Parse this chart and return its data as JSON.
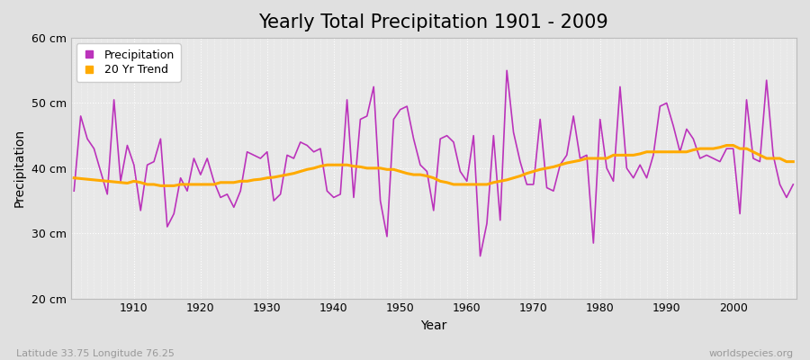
{
  "title": "Yearly Total Precipitation 1901 - 2009",
  "xlabel": "Year",
  "ylabel": "Precipitation",
  "latitude": "33.75",
  "longitude": "76.25",
  "source": "worldspecies.org",
  "years": [
    1901,
    1902,
    1903,
    1904,
    1905,
    1906,
    1907,
    1908,
    1909,
    1910,
    1911,
    1912,
    1913,
    1914,
    1915,
    1916,
    1917,
    1918,
    1919,
    1920,
    1921,
    1922,
    1923,
    1924,
    1925,
    1926,
    1927,
    1928,
    1929,
    1930,
    1931,
    1932,
    1933,
    1934,
    1935,
    1936,
    1937,
    1938,
    1939,
    1940,
    1941,
    1942,
    1943,
    1944,
    1945,
    1946,
    1947,
    1948,
    1949,
    1950,
    1951,
    1952,
    1953,
    1954,
    1955,
    1956,
    1957,
    1958,
    1959,
    1960,
    1961,
    1962,
    1963,
    1964,
    1965,
    1966,
    1967,
    1968,
    1969,
    1970,
    1971,
    1972,
    1973,
    1974,
    1975,
    1976,
    1977,
    1978,
    1979,
    1980,
    1981,
    1982,
    1983,
    1984,
    1985,
    1986,
    1987,
    1988,
    1989,
    1990,
    1991,
    1992,
    1993,
    1994,
    1995,
    1996,
    1997,
    1998,
    1999,
    2000,
    2001,
    2002,
    2003,
    2004,
    2005,
    2006,
    2007,
    2008,
    2009
  ],
  "precipitation": [
    36.5,
    48.0,
    44.5,
    43.0,
    39.5,
    36.0,
    50.5,
    38.0,
    43.5,
    40.5,
    33.5,
    40.5,
    41.0,
    44.5,
    31.0,
    33.0,
    38.5,
    36.5,
    41.5,
    39.0,
    41.5,
    38.0,
    35.5,
    36.0,
    34.0,
    36.5,
    42.5,
    42.0,
    41.5,
    42.5,
    35.0,
    36.0,
    42.0,
    41.5,
    44.0,
    43.5,
    42.5,
    43.0,
    36.5,
    35.5,
    36.0,
    50.5,
    35.5,
    47.5,
    48.0,
    52.5,
    35.0,
    29.5,
    47.5,
    49.0,
    49.5,
    44.5,
    40.5,
    39.5,
    33.5,
    44.5,
    45.0,
    44.0,
    39.5,
    38.0,
    45.0,
    26.5,
    31.5,
    45.0,
    32.0,
    55.0,
    45.5,
    41.0,
    37.5,
    37.5,
    47.5,
    37.0,
    36.5,
    40.5,
    42.0,
    48.0,
    41.5,
    42.0,
    28.5,
    47.5,
    40.0,
    38.0,
    52.5,
    40.0,
    38.5,
    40.5,
    38.5,
    42.0,
    49.5,
    50.0,
    46.5,
    42.5,
    46.0,
    44.5,
    41.5,
    42.0,
    41.5,
    41.0,
    43.0,
    43.0,
    33.0,
    50.5,
    41.5,
    41.0,
    53.5,
    42.0,
    37.5,
    35.5,
    37.5
  ],
  "trend": [
    38.5,
    38.4,
    38.3,
    38.2,
    38.1,
    38.0,
    37.9,
    37.8,
    37.7,
    38.0,
    37.8,
    37.5,
    37.5,
    37.3,
    37.3,
    37.3,
    37.5,
    37.5,
    37.5,
    37.5,
    37.5,
    37.5,
    37.8,
    37.8,
    37.8,
    38.0,
    38.0,
    38.2,
    38.3,
    38.5,
    38.6,
    38.8,
    39.0,
    39.2,
    39.5,
    39.8,
    40.0,
    40.3,
    40.5,
    40.5,
    40.5,
    40.5,
    40.3,
    40.2,
    40.0,
    40.0,
    40.0,
    39.8,
    39.8,
    39.5,
    39.2,
    39.0,
    39.0,
    38.8,
    38.5,
    38.0,
    37.8,
    37.5,
    37.5,
    37.5,
    37.5,
    37.5,
    37.5,
    37.8,
    38.0,
    38.2,
    38.5,
    38.8,
    39.2,
    39.5,
    39.8,
    40.0,
    40.2,
    40.5,
    40.8,
    41.0,
    41.2,
    41.5,
    41.5,
    41.5,
    41.5,
    42.0,
    42.0,
    42.0,
    42.0,
    42.2,
    42.5,
    42.5,
    42.5,
    42.5,
    42.5,
    42.5,
    42.5,
    42.8,
    43.0,
    43.0,
    43.0,
    43.2,
    43.5,
    43.5,
    43.0,
    43.0,
    42.5,
    42.0,
    41.5,
    41.5,
    41.5,
    41.0,
    41.0
  ],
  "ylim": [
    20,
    60
  ],
  "yticks": [
    20,
    30,
    40,
    50,
    60
  ],
  "ytick_labels": [
    "20 cm",
    "30 cm",
    "40 cm",
    "50 cm",
    "60 cm"
  ],
  "xticks": [
    1910,
    1920,
    1930,
    1940,
    1950,
    1960,
    1970,
    1980,
    1990,
    2000
  ],
  "fig_bg_color": "#e0e0e0",
  "plot_bg_color": "#e8e8e8",
  "precip_color": "#bb33bb",
  "trend_color": "#ffaa00",
  "grid_color": "#ffffff",
  "title_fontsize": 15,
  "axis_label_fontsize": 10,
  "tick_fontsize": 9,
  "legend_fontsize": 9,
  "annotation_color": "#999999"
}
